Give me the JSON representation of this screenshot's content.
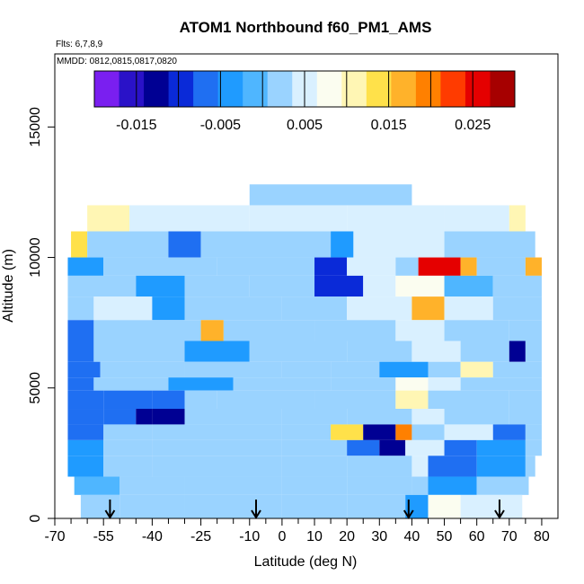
{
  "chart_data": {
    "type": "heatmap",
    "title": "ATOM1 Northbound f60_PM1_AMS",
    "subtitle_lines": [
      "Flts: 6,7,8,9",
      "MMDD: 0812,0815,0817,0820"
    ],
    "xlabel": "Latitude (deg N)",
    "ylabel": "Altitude (m)",
    "xlim": [
      -70,
      85
    ],
    "ylim": [
      0,
      17800
    ],
    "x_tick_labels": [
      "-70",
      "-55",
      "-40",
      "-25",
      "-10",
      "0",
      "10",
      "20",
      "30",
      "40",
      "50",
      "60",
      "70",
      "80"
    ],
    "x_minor_ticks": [
      -65,
      -60,
      -50,
      -45,
      -35,
      -30,
      -20,
      -15,
      -5,
      5,
      15,
      25,
      35,
      45,
      55,
      65,
      75
    ],
    "y_ticks": [
      0,
      5000,
      10000,
      15000
    ],
    "colorbar": {
      "range": [
        -0.02,
        0.03
      ],
      "tick_labels": [
        "-0.015",
        "-0.005",
        "0.005",
        "0.015",
        "0.025"
      ],
      "tick_values": [
        -0.015,
        -0.005,
        0.005,
        0.015,
        0.025
      ],
      "colors": [
        "#7a1ff0",
        "#2a12c8",
        "#000093",
        "#0a2ad8",
        "#1f6ff2",
        "#1f9bff",
        "#4fb6ff",
        "#9ad3ff",
        "#d9f0ff",
        "#fbfdf0",
        "#fff6b4",
        "#ffe14a",
        "#ffb22a",
        "#ff8000",
        "#ff3b00",
        "#e50000",
        "#a60000"
      ]
    },
    "flight_markers_lat": [
      -53,
      -8,
      39,
      67
    ],
    "heat_rows": [
      {
        "alt": [
          12000,
          12800
        ],
        "lat": [
          -10,
          40
        ],
        "cells": [
          [
            -10,
            40,
            0.003
          ]
        ]
      },
      {
        "alt": [
          11000,
          12000
        ],
        "lat": [
          -60,
          75
        ],
        "cells": [
          [
            -60,
            -47,
            0.011
          ],
          [
            -47,
            -10,
            0.004
          ],
          [
            -10,
            20,
            0.005
          ],
          [
            20,
            50,
            0.004
          ],
          [
            50,
            70,
            0.005
          ],
          [
            70,
            75,
            0.011
          ]
        ]
      },
      {
        "alt": [
          10000,
          11000
        ],
        "lat": [
          -65,
          78
        ],
        "cells": [
          [
            -65,
            -60,
            0.013
          ],
          [
            -60,
            -35,
            0.002
          ],
          [
            -35,
            -25,
            -0.008
          ],
          [
            -25,
            15,
            0.002
          ],
          [
            15,
            22,
            -0.004
          ],
          [
            22,
            50,
            0.004
          ],
          [
            50,
            78,
            0.002
          ]
        ]
      },
      {
        "alt": [
          9300,
          10000
        ],
        "lat": [
          -66,
          80
        ],
        "cells": [
          [
            -66,
            -55,
            -0.004
          ],
          [
            -55,
            -20,
            0.001
          ],
          [
            -20,
            10,
            0.002
          ],
          [
            10,
            20,
            -0.009
          ],
          [
            20,
            35,
            0.006
          ],
          [
            35,
            42,
            0.001
          ],
          [
            42,
            55,
            0.027
          ],
          [
            55,
            60,
            0.016
          ],
          [
            60,
            75,
            0.003
          ],
          [
            75,
            80,
            0.017
          ]
        ]
      },
      {
        "alt": [
          8500,
          9300
        ],
        "lat": [
          -66,
          80
        ],
        "cells": [
          [
            -66,
            -45,
            0.002
          ],
          [
            -45,
            -30,
            -0.005
          ],
          [
            -30,
            -10,
            0.001
          ],
          [
            -10,
            10,
            0.003
          ],
          [
            10,
            25,
            -0.009
          ],
          [
            25,
            35,
            0.004
          ],
          [
            35,
            50,
            0.007
          ],
          [
            50,
            65,
            -0.002
          ],
          [
            65,
            80,
            0.003
          ]
        ]
      },
      {
        "alt": [
          7600,
          8500
        ],
        "lat": [
          -66,
          80
        ],
        "cells": [
          [
            -66,
            -58,
            0.002
          ],
          [
            -58,
            -40,
            0.004
          ],
          [
            -40,
            -30,
            -0.003
          ],
          [
            -30,
            0,
            0.002
          ],
          [
            0,
            20,
            0.003
          ],
          [
            20,
            40,
            0.004
          ],
          [
            40,
            50,
            0.016
          ],
          [
            50,
            65,
            0.006
          ],
          [
            65,
            80,
            0.003
          ]
        ]
      },
      {
        "alt": [
          6800,
          7600
        ],
        "lat": [
          -66,
          80
        ],
        "cells": [
          [
            -66,
            -58,
            -0.008
          ],
          [
            -58,
            -25,
            0.001
          ],
          [
            -25,
            -18,
            0.018
          ],
          [
            -18,
            10,
            0.002
          ],
          [
            10,
            35,
            0.003
          ],
          [
            35,
            50,
            0.004
          ],
          [
            50,
            70,
            0.002
          ],
          [
            70,
            80,
            0.003
          ]
        ]
      },
      {
        "alt": [
          6000,
          6800
        ],
        "lat": [
          -66,
          80
        ],
        "cells": [
          [
            -66,
            -58,
            -0.008
          ],
          [
            -58,
            -30,
            0.002
          ],
          [
            -30,
            -10,
            -0.004
          ],
          [
            -10,
            20,
            0.002
          ],
          [
            20,
            40,
            0.003
          ],
          [
            40,
            55,
            0.004
          ],
          [
            55,
            70,
            0.002
          ],
          [
            70,
            75,
            -0.012
          ],
          [
            75,
            80,
            0.003
          ]
        ]
      },
      {
        "alt": [
          5400,
          6000
        ],
        "lat": [
          -66,
          80
        ],
        "cells": [
          [
            -66,
            -56,
            -0.006
          ],
          [
            -56,
            -30,
            0.002
          ],
          [
            -30,
            0,
            0.001
          ],
          [
            0,
            15,
            0.003
          ],
          [
            15,
            30,
            0.001
          ],
          [
            30,
            45,
            -0.004
          ],
          [
            45,
            55,
            0.003
          ],
          [
            55,
            65,
            0.012
          ],
          [
            65,
            80,
            0.003
          ]
        ]
      },
      {
        "alt": [
          4900,
          5400
        ],
        "lat": [
          -66,
          80
        ],
        "cells": [
          [
            -66,
            -58,
            -0.007
          ],
          [
            -58,
            -35,
            0.002
          ],
          [
            -35,
            -15,
            -0.005
          ],
          [
            -15,
            15,
            0.002
          ],
          [
            15,
            35,
            0.003
          ],
          [
            35,
            45,
            0.009
          ],
          [
            45,
            55,
            0.004
          ],
          [
            55,
            80,
            0.002
          ]
        ]
      },
      {
        "alt": [
          4200,
          4900
        ],
        "lat": [
          -66,
          80
        ],
        "cells": [
          [
            -66,
            -55,
            -0.006
          ],
          [
            -55,
            -40,
            -0.006
          ],
          [
            -40,
            -30,
            -0.006
          ],
          [
            -30,
            -20,
            0.001
          ],
          [
            -20,
            10,
            0.002
          ],
          [
            10,
            35,
            0.002
          ],
          [
            35,
            45,
            0.011
          ],
          [
            45,
            70,
            0.003
          ],
          [
            70,
            80,
            0.002
          ]
        ]
      },
      {
        "alt": [
          3600,
          4200
        ],
        "lat": [
          -66,
          80
        ],
        "cells": [
          [
            -66,
            -55,
            -0.007
          ],
          [
            -55,
            -45,
            -0.006
          ],
          [
            -45,
            -40,
            -0.013
          ],
          [
            -40,
            -30,
            -0.012
          ],
          [
            -30,
            0,
            0.002
          ],
          [
            0,
            20,
            0.003
          ],
          [
            20,
            40,
            0.003
          ],
          [
            40,
            50,
            0.005
          ],
          [
            50,
            70,
            0.003
          ],
          [
            70,
            80,
            0.002
          ]
        ]
      },
      {
        "alt": [
          3000,
          3600
        ],
        "lat": [
          -66,
          80
        ],
        "cells": [
          [
            -66,
            -55,
            -0.006
          ],
          [
            -55,
            -40,
            0.002
          ],
          [
            -40,
            0,
            0.001
          ],
          [
            0,
            15,
            0.003
          ],
          [
            15,
            25,
            0.015
          ],
          [
            25,
            35,
            -0.013
          ],
          [
            35,
            40,
            0.019
          ],
          [
            40,
            50,
            0.003
          ],
          [
            50,
            65,
            0.004
          ],
          [
            65,
            75,
            -0.006
          ],
          [
            75,
            80,
            0.001
          ]
        ]
      },
      {
        "alt": [
          2400,
          3000
        ],
        "lat": [
          -66,
          80
        ],
        "cells": [
          [
            -66,
            -55,
            -0.005
          ],
          [
            -55,
            -40,
            0.001
          ],
          [
            -40,
            0,
            0.002
          ],
          [
            0,
            20,
            0.003
          ],
          [
            20,
            30,
            -0.007
          ],
          [
            30,
            38,
            -0.012
          ],
          [
            38,
            50,
            0.005
          ],
          [
            50,
            60,
            -0.006
          ],
          [
            60,
            75,
            -0.004
          ],
          [
            75,
            80,
            0.001
          ]
        ]
      },
      {
        "alt": [
          1600,
          2400
        ],
        "lat": [
          -66,
          78
        ],
        "cells": [
          [
            -66,
            -55,
            -0.004
          ],
          [
            -55,
            -40,
            0.001
          ],
          [
            -40,
            0,
            0.002
          ],
          [
            0,
            20,
            0.003
          ],
          [
            20,
            40,
            0.002
          ],
          [
            40,
            45,
            0.004
          ],
          [
            45,
            60,
            -0.006
          ],
          [
            60,
            75,
            -0.003
          ],
          [
            75,
            78,
            0.003
          ]
        ]
      },
      {
        "alt": [
          900,
          1600
        ],
        "lat": [
          -64,
          76
        ],
        "cells": [
          [
            -64,
            -50,
            -0.002
          ],
          [
            -50,
            -30,
            0.003
          ],
          [
            -30,
            0,
            0.002
          ],
          [
            0,
            20,
            0.003
          ],
          [
            20,
            40,
            0.001
          ],
          [
            40,
            45,
            0.002
          ],
          [
            45,
            60,
            -0.005
          ],
          [
            60,
            76,
            0.002
          ]
        ]
      },
      {
        "alt": [
          0,
          900
        ],
        "lat": [
          -62,
          74
        ],
        "cells": [
          [
            -62,
            -50,
            0.002
          ],
          [
            -50,
            -30,
            0.001
          ],
          [
            -30,
            0,
            0.002
          ],
          [
            0,
            20,
            0.003
          ],
          [
            20,
            38,
            0.002
          ],
          [
            38,
            45,
            -0.004
          ],
          [
            45,
            55,
            0.008
          ],
          [
            55,
            74,
            0.006
          ]
        ]
      }
    ]
  }
}
